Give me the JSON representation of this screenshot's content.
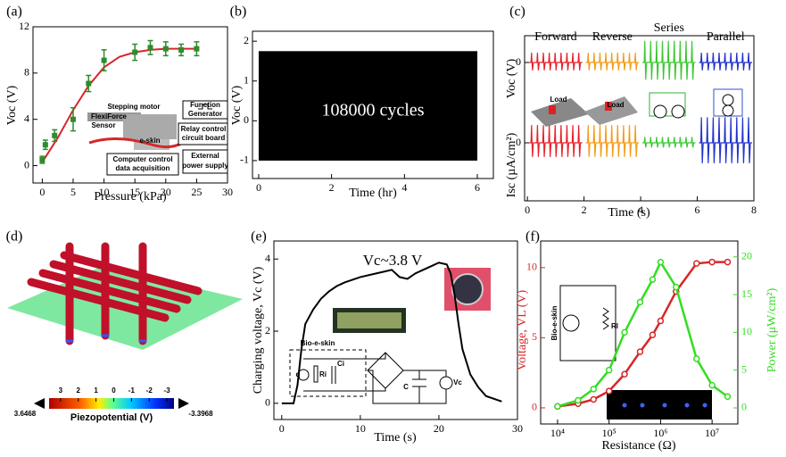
{
  "chart_data": [
    {
      "panel": "(a)",
      "type": "scatter",
      "xlabel": "Pressure (kPa)",
      "ylabel": "Voc (V)",
      "x": [
        0,
        0.5,
        2,
        5,
        7.5,
        10,
        15,
        17.5,
        20,
        22.5,
        25
      ],
      "values": [
        0.5,
        1.8,
        2.6,
        4.0,
        7.1,
        9.1,
        9.8,
        10.2,
        10.1,
        10.0,
        10.1
      ],
      "errors": [
        0.3,
        0.4,
        0.5,
        1.0,
        0.7,
        0.9,
        0.7,
        0.6,
        0.6,
        0.5,
        0.6
      ],
      "color": "#2e8b2e",
      "fit_x": [
        0,
        2.5,
        5,
        7.5,
        10,
        12.5,
        15,
        17.5,
        20,
        22.5,
        25
      ],
      "fit_values": [
        0.3,
        2.4,
        4.8,
        6.9,
        8.5,
        9.4,
        9.8,
        10.0,
        10.1,
        10.1,
        10.1
      ],
      "fit_color": "#d62728",
      "xlim": [
        -1.5,
        30
      ],
      "xticks": [
        0,
        5,
        10,
        15,
        20,
        25,
        30
      ],
      "ylim": [
        -1.5,
        12
      ],
      "yticks": [
        0,
        4,
        8,
        12
      ],
      "inset_labels": [
        "Stepping motor",
        "Function",
        "Generator",
        "FlexiForce",
        "Sensor",
        "e-skin",
        "Relay control",
        "circuit board",
        "Computer control",
        "data acquisition",
        "External",
        "power supply"
      ]
    },
    {
      "panel": "(b)",
      "type": "band",
      "xlabel": "Time (hr)",
      "ylabel": "Voc (V)",
      "annotation": "108000 cycles",
      "values_max": 1.75,
      "values_min": -1.0,
      "x_start": 0,
      "x_end": 6,
      "color": "#000000",
      "xlim": [
        -0.17,
        6.44
      ],
      "xticks": [
        0,
        2,
        4,
        6
      ],
      "ylim": [
        -1.45,
        2.25
      ],
      "yticks": [
        -1,
        0,
        1,
        2
      ]
    },
    {
      "panel": "(c)",
      "type": "pulses",
      "xlabel": "Time (s)",
      "ylabel_top": "Voc (V)",
      "ylabel_bottom": "Isc (µA/cm²)",
      "xlim": [
        -0.1,
        8
      ],
      "xticks": [
        0,
        2,
        4,
        6,
        8
      ],
      "yticks_top": [
        0
      ],
      "yticks_bottom": [
        0
      ],
      "groups": [
        {
          "name": "Forward",
          "color": "#e8212b",
          "start": 0,
          "end": 2,
          "voc_peak": 0.5,
          "isc_peak": 0.9
        },
        {
          "name": "Reverse",
          "color": "#f39c1a",
          "start": 2,
          "end": 4,
          "voc_peak": 0.5,
          "isc_peak": 0.9
        },
        {
          "name": "Series",
          "color": "#3cc832",
          "start": 4,
          "end": 6,
          "voc_peak": 1.1,
          "isc_peak": 0.3
        },
        {
          "name": "Parallel",
          "color": "#2233cc",
          "start": 6,
          "end": 8,
          "voc_peak": 0.5,
          "isc_peak": 1.3
        }
      ],
      "inset_labels": [
        "Load",
        "Load"
      ]
    },
    {
      "panel": "(d)",
      "type": "colorbar",
      "colorbar_label": "Piezopotential (V)",
      "colorbar_max": 3.6468,
      "colorbar_min": -3.3968,
      "cticks": [
        3,
        2,
        1,
        0,
        -1,
        -2,
        -3
      ]
    },
    {
      "panel": "(e)",
      "type": "line",
      "xlabel": "Time (s)",
      "ylabel": "Charging voltage, Vc (V)",
      "annotation": "Vc~3.8 V",
      "x": [
        0,
        1.5,
        2,
        2.5,
        3,
        4,
        5,
        6,
        7,
        8,
        10,
        12,
        13,
        14,
        15,
        16,
        17,
        18,
        19,
        20,
        21,
        21.5,
        22,
        22.5,
        23,
        24,
        25,
        26,
        28
      ],
      "values": [
        0,
        0,
        0.5,
        1.5,
        2.2,
        2.6,
        2.9,
        3.1,
        3.25,
        3.35,
        3.5,
        3.6,
        3.65,
        3.7,
        3.5,
        3.45,
        3.6,
        3.7,
        3.8,
        3.9,
        3.85,
        3.6,
        3.0,
        2.2,
        1.5,
        0.8,
        0.45,
        0.2,
        0.05
      ],
      "color": "#000000",
      "xlim": [
        -1,
        30
      ],
      "xticks": [
        0,
        10,
        20,
        30
      ],
      "ylim": [
        -0.45,
        4.5
      ],
      "yticks": [
        0,
        2,
        4
      ],
      "circuit_labels": [
        "Bio-e-skin",
        "q",
        "Ri",
        "Ci",
        "C",
        "Vc"
      ]
    },
    {
      "panel": "(f)",
      "type": "dual_line",
      "xlabel": "Resistance (Ω)",
      "ylabel": "Voltage, VL (V)",
      "y2label": "Power (μW/cm²)",
      "log_x": true,
      "x": [
        10000,
        25000,
        50000,
        100000,
        200000,
        400000,
        700000,
        1000000,
        2000000,
        5000000,
        10000000,
        20000000
      ],
      "series": [
        {
          "color": "#d62728",
          "values": [
            0.1,
            0.3,
            0.6,
            1.2,
            2.4,
            4.0,
            5.2,
            6.2,
            8.3,
            10.3,
            10.4,
            10.4
          ]
        },
        {
          "color": "#33dd22",
          "axis": "y2",
          "values": [
            0.2,
            1.0,
            2.5,
            5.0,
            10.0,
            14.0,
            17.0,
            19.3,
            16.0,
            6.5,
            3.0,
            1.5
          ]
        }
      ],
      "xlim": [
        4700,
        31600000
      ],
      "xticks": [
        {
          "value": 10000,
          "label": "10⁴"
        },
        {
          "value": 100000,
          "label": "10⁵"
        },
        {
          "value": 1000000,
          "label": "10⁶"
        },
        {
          "value": 10000000,
          "label": "10⁷"
        }
      ],
      "ylim": [
        -1.15,
        11.9
      ],
      "yticks": [
        0,
        5,
        10
      ],
      "y2lim": [
        -2.13,
        22.1
      ],
      "y2ticks": [
        0,
        5,
        10,
        15,
        20
      ],
      "inset_labels": [
        "Bio-e-skin",
        "Rl"
      ]
    }
  ]
}
